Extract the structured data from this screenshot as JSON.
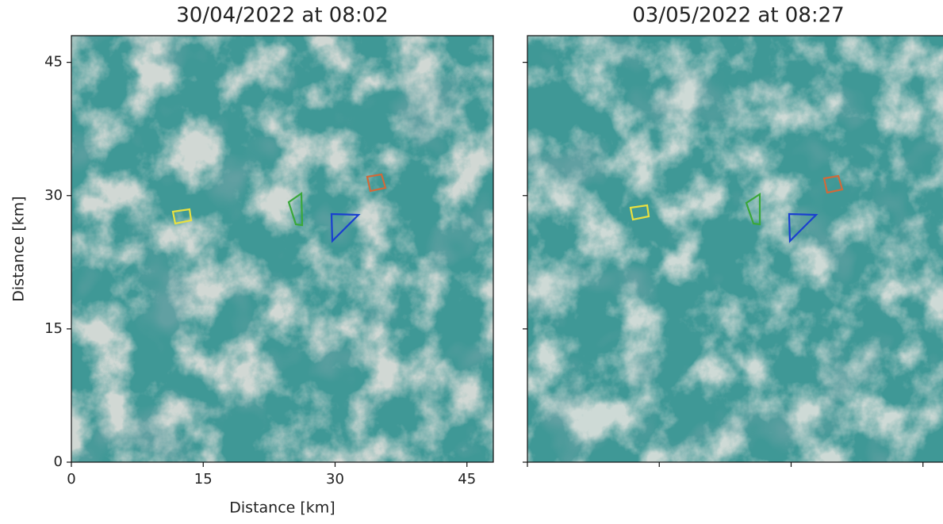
{
  "chart_data": [
    {
      "type": "image",
      "title": "30/04/2022 at 08:02",
      "xlabel": "Distance [km]",
      "ylabel": "Distance [km]",
      "xlim": [
        0,
        48
      ],
      "ylim": [
        0,
        48
      ],
      "xticks": [
        0,
        15,
        30,
        45
      ],
      "yticks": [
        0,
        15,
        30,
        45
      ],
      "tick_labels": true
    },
    {
      "type": "image",
      "title": "03/05/2022 at 08:27",
      "xlim": [
        0,
        48
      ],
      "ylim": [
        0,
        48
      ],
      "xticks": [
        0,
        15,
        30,
        45
      ],
      "yticks": [
        0,
        15,
        30,
        45
      ],
      "tick_labels": false
    }
  ]
}
